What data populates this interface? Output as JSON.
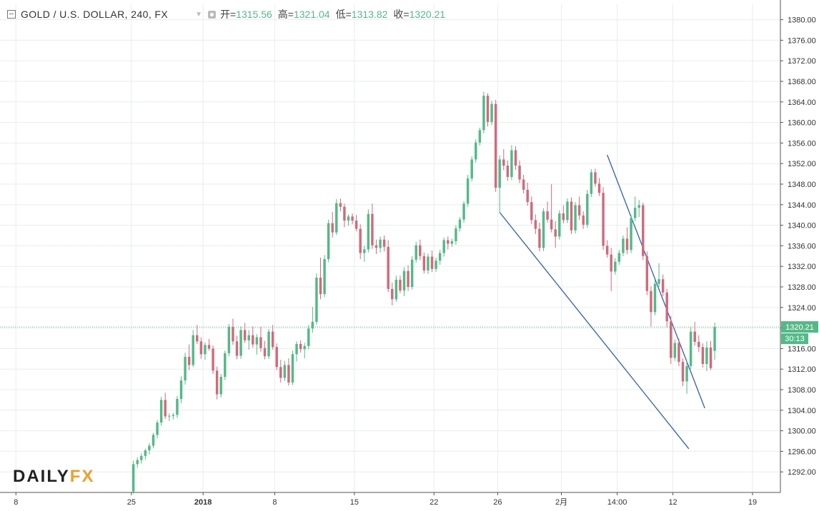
{
  "header": {
    "title": "GOLD / U.S. DOLLAR, 240, FX",
    "open_label": "开=",
    "open_value": "1315.56",
    "high_label": "高=",
    "high_value": "1321.04",
    "low_label": "低=",
    "low_value": "1313.82",
    "close_label": "收=",
    "close_value": "1320.21"
  },
  "logo": {
    "daily": "DAILY",
    "fx": "FX"
  },
  "colors": {
    "up": "#53b987",
    "down": "#d06a7d",
    "trend": "#2f5fae",
    "grid": "#e8ecee",
    "price_tag": "#53b987"
  },
  "chart_data": {
    "type": "candlestick",
    "title": "GOLD / U.S. DOLLAR, 240, FX",
    "timeframe": "240",
    "ylim": [
      1288,
      1383
    ],
    "y_ticks": [
      "1292.00",
      "1296.00",
      "1300.00",
      "1304.00",
      "1308.00",
      "1312.00",
      "1316.00",
      "1320.00",
      "1324.00",
      "1328.00",
      "1332.00",
      "1336.00",
      "1340.00",
      "1344.00",
      "1348.00",
      "1352.00",
      "1356.00",
      "1360.00",
      "1364.00",
      "1368.00",
      "1372.00",
      "1376.00",
      "1380.00"
    ],
    "x_ticks": [
      {
        "label": "8",
        "bar": -29,
        "bold": false
      },
      {
        "label": "25",
        "bar": 0,
        "bold": false
      },
      {
        "label": "2018",
        "bar": 18,
        "bold": true
      },
      {
        "label": "8",
        "bar": 36,
        "bold": false
      },
      {
        "label": "15",
        "bar": 56,
        "bold": false
      },
      {
        "label": "22",
        "bar": 76,
        "bold": false
      },
      {
        "label": "26",
        "bar": 92,
        "bold": false
      },
      {
        "label": "2月",
        "bar": 108,
        "bold": false
      },
      {
        "label": "14:00",
        "bar": 122,
        "bold": false
      },
      {
        "label": "12",
        "bar": 136,
        "bold": false
      },
      {
        "label": "19",
        "bar": 156,
        "bold": false
      }
    ],
    "x_range_bars": [
      -33,
      163
    ],
    "current_price": "1320.21",
    "countdown": "30:13",
    "candles": [
      [
        1288.2,
        1294.2,
        1287.8,
        1293.5
      ],
      [
        1293.5,
        1294.8,
        1292.8,
        1294.3
      ],
      [
        1294.3,
        1295.6,
        1293.6,
        1295.1
      ],
      [
        1295.1,
        1296.5,
        1294.4,
        1296.2
      ],
      [
        1296.2,
        1297.6,
        1295.4,
        1297.1
      ],
      [
        1297.1,
        1299.6,
        1296.6,
        1299.2
      ],
      [
        1299.2,
        1302.1,
        1298.5,
        1301.6
      ],
      [
        1301.6,
        1306.6,
        1301.0,
        1306.0
      ],
      [
        1306.0,
        1307.4,
        1302.3,
        1302.8
      ],
      [
        1302.8,
        1303.4,
        1301.9,
        1302.9
      ],
      [
        1302.9,
        1303.5,
        1302.2,
        1303.1
      ],
      [
        1303.1,
        1306.8,
        1302.5,
        1306.2
      ],
      [
        1306.2,
        1310.6,
        1305.4,
        1309.8
      ],
      [
        1309.8,
        1315.2,
        1309.0,
        1314.4
      ],
      [
        1314.4,
        1316.8,
        1311.8,
        1312.8
      ],
      [
        1312.8,
        1319.6,
        1312.4,
        1318.6
      ],
      [
        1318.6,
        1320.6,
        1316.9,
        1317.4
      ],
      [
        1317.4,
        1318.2,
        1314.0,
        1314.9
      ],
      [
        1314.9,
        1317.2,
        1313.8,
        1316.7
      ],
      [
        1316.7,
        1317.9,
        1315.6,
        1316.0
      ],
      [
        1316.0,
        1316.6,
        1311.1,
        1311.7
      ],
      [
        1311.7,
        1312.5,
        1306.1,
        1307.1
      ],
      [
        1307.1,
        1311.1,
        1306.5,
        1310.5
      ],
      [
        1310.5,
        1315.6,
        1309.9,
        1315.1
      ],
      [
        1315.1,
        1320.8,
        1314.5,
        1320.2
      ],
      [
        1320.2,
        1321.8,
        1316.7,
        1317.4
      ],
      [
        1317.4,
        1318.5,
        1313.9,
        1314.6
      ],
      [
        1314.6,
        1320.3,
        1314.0,
        1319.6
      ],
      [
        1319.6,
        1321.0,
        1317.1,
        1317.6
      ],
      [
        1317.6,
        1319.6,
        1315.8,
        1318.6
      ],
      [
        1318.6,
        1320.3,
        1316.2,
        1316.8
      ],
      [
        1316.8,
        1318.8,
        1314.8,
        1318.2
      ],
      [
        1318.2,
        1320.2,
        1315.4,
        1316.1
      ],
      [
        1316.1,
        1317.5,
        1313.9,
        1314.5
      ],
      [
        1314.5,
        1319.8,
        1314.0,
        1319.3
      ],
      [
        1319.3,
        1320.6,
        1315.8,
        1316.3
      ],
      [
        1316.3,
        1317.0,
        1311.8,
        1312.4
      ],
      [
        1312.4,
        1313.8,
        1309.4,
        1310.3
      ],
      [
        1310.3,
        1313.6,
        1309.7,
        1312.8
      ],
      [
        1312.8,
        1314.1,
        1308.8,
        1309.4
      ],
      [
        1309.4,
        1315.6,
        1308.9,
        1314.9
      ],
      [
        1314.9,
        1317.4,
        1313.5,
        1316.9
      ],
      [
        1316.9,
        1317.6,
        1315.2,
        1315.9
      ],
      [
        1315.9,
        1317.1,
        1314.1,
        1316.5
      ],
      [
        1316.5,
        1320.6,
        1315.9,
        1319.9
      ],
      [
        1319.9,
        1324.1,
        1319.1,
        1321.2
      ],
      [
        1321.2,
        1330.6,
        1320.7,
        1329.8
      ],
      [
        1329.8,
        1333.7,
        1325.6,
        1326.6
      ],
      [
        1326.6,
        1334.2,
        1326.0,
        1333.4
      ],
      [
        1333.4,
        1341.1,
        1332.8,
        1340.4
      ],
      [
        1340.4,
        1342.6,
        1337.6,
        1338.6
      ],
      [
        1338.6,
        1345.1,
        1338.1,
        1344.3
      ],
      [
        1344.3,
        1345.2,
        1342.7,
        1343.6
      ],
      [
        1343.6,
        1344.2,
        1339.6,
        1340.9
      ],
      [
        1340.9,
        1342.1,
        1339.9,
        1341.7
      ],
      [
        1341.7,
        1342.3,
        1340.2,
        1340.9
      ],
      [
        1340.9,
        1342.0,
        1338.8,
        1339.3
      ],
      [
        1339.3,
        1340.2,
        1333.4,
        1334.6
      ],
      [
        1334.6,
        1336.0,
        1332.9,
        1335.3
      ],
      [
        1335.3,
        1343.1,
        1334.7,
        1342.2
      ],
      [
        1342.2,
        1344.2,
        1335.4,
        1336.1
      ],
      [
        1336.1,
        1337.2,
        1334.4,
        1335.6
      ],
      [
        1335.6,
        1337.8,
        1334.7,
        1337.2
      ],
      [
        1337.2,
        1338.0,
        1334.9,
        1335.8
      ],
      [
        1335.8,
        1337.1,
        1327.0,
        1327.6
      ],
      [
        1327.6,
        1328.8,
        1324.4,
        1325.6
      ],
      [
        1325.6,
        1330.2,
        1325.1,
        1329.4
      ],
      [
        1329.4,
        1330.2,
        1326.8,
        1327.3
      ],
      [
        1327.3,
        1331.8,
        1326.2,
        1331.1
      ],
      [
        1331.1,
        1332.2,
        1327.2,
        1328.0
      ],
      [
        1328.0,
        1334.0,
        1327.5,
        1333.3
      ],
      [
        1333.3,
        1336.8,
        1332.7,
        1336.1
      ],
      [
        1336.1,
        1337.2,
        1333.2,
        1334.0
      ],
      [
        1334.0,
        1334.7,
        1330.6,
        1331.2
      ],
      [
        1331.2,
        1334.5,
        1330.5,
        1333.9
      ],
      [
        1333.9,
        1335.1,
        1330.9,
        1331.5
      ],
      [
        1331.5,
        1333.7,
        1330.9,
        1333.1
      ],
      [
        1333.1,
        1335.2,
        1332.3,
        1334.6
      ],
      [
        1334.6,
        1337.6,
        1333.9,
        1337.1
      ],
      [
        1337.1,
        1337.8,
        1335.3,
        1336.4
      ],
      [
        1336.4,
        1337.4,
        1335.8,
        1336.9
      ],
      [
        1336.9,
        1340.0,
        1336.2,
        1339.4
      ],
      [
        1339.4,
        1341.6,
        1338.8,
        1341.1
      ],
      [
        1341.1,
        1344.7,
        1340.5,
        1344.2
      ],
      [
        1344.2,
        1349.8,
        1343.6,
        1349.1
      ],
      [
        1349.1,
        1353.4,
        1348.5,
        1352.8
      ],
      [
        1352.8,
        1356.7,
        1352.2,
        1356.1
      ],
      [
        1356.1,
        1359.0,
        1355.5,
        1358.5
      ],
      [
        1358.5,
        1366.0,
        1357.9,
        1365.2
      ],
      [
        1365.2,
        1365.7,
        1359.2,
        1360.1
      ],
      [
        1360.1,
        1364.2,
        1359.5,
        1363.6
      ],
      [
        1363.6,
        1364.4,
        1346.5,
        1347.3
      ],
      [
        1347.3,
        1353.6,
        1342.3,
        1352.8
      ],
      [
        1352.8,
        1354.8,
        1350.7,
        1351.6
      ],
      [
        1351.6,
        1352.6,
        1348.6,
        1349.4
      ],
      [
        1349.4,
        1355.6,
        1348.8,
        1354.6
      ],
      [
        1354.6,
        1355.4,
        1350.8,
        1351.6
      ],
      [
        1351.6,
        1352.6,
        1348.2,
        1348.9
      ],
      [
        1348.9,
        1349.8,
        1346.2,
        1346.9
      ],
      [
        1346.9,
        1348.3,
        1343.8,
        1344.5
      ],
      [
        1344.5,
        1345.6,
        1340.2,
        1341.0
      ],
      [
        1341.0,
        1342.1,
        1338.3,
        1339.3
      ],
      [
        1339.3,
        1340.5,
        1334.9,
        1335.6
      ],
      [
        1335.6,
        1343.3,
        1335.0,
        1342.7
      ],
      [
        1342.7,
        1344.6,
        1340.5,
        1341.1
      ],
      [
        1341.1,
        1348.0,
        1338.6,
        1339.2
      ],
      [
        1339.2,
        1340.8,
        1335.6,
        1337.8
      ],
      [
        1337.8,
        1342.9,
        1337.2,
        1342.3
      ],
      [
        1342.3,
        1343.9,
        1340.4,
        1341.0
      ],
      [
        1341.0,
        1345.2,
        1340.4,
        1344.6
      ],
      [
        1344.6,
        1345.4,
        1338.3,
        1339.0
      ],
      [
        1339.0,
        1344.5,
        1338.4,
        1343.9
      ],
      [
        1343.9,
        1345.6,
        1341.0,
        1341.9
      ],
      [
        1341.9,
        1342.7,
        1339.3,
        1340.1
      ],
      [
        1340.1,
        1346.9,
        1339.5,
        1346.1
      ],
      [
        1346.1,
        1350.9,
        1345.5,
        1350.3
      ],
      [
        1350.3,
        1351.0,
        1347.5,
        1348.1
      ],
      [
        1348.1,
        1349.2,
        1345.7,
        1346.3
      ],
      [
        1346.3,
        1347.4,
        1335.2,
        1336.0
      ],
      [
        1336.0,
        1337.1,
        1333.7,
        1334.3
      ],
      [
        1334.3,
        1335.6,
        1327.2,
        1331.0
      ],
      [
        1331.0,
        1333.6,
        1330.4,
        1332.9
      ],
      [
        1332.9,
        1335.2,
        1332.3,
        1334.6
      ],
      [
        1334.6,
        1338.0,
        1334.0,
        1337.4
      ],
      [
        1337.4,
        1339.6,
        1334.4,
        1335.2
      ],
      [
        1335.2,
        1342.0,
        1334.6,
        1341.4
      ],
      [
        1341.4,
        1345.6,
        1340.8,
        1343.4
      ],
      [
        1343.4,
        1344.9,
        1341.6,
        1343.9
      ],
      [
        1343.9,
        1344.4,
        1333.2,
        1334.0
      ],
      [
        1334.0,
        1334.9,
        1326.4,
        1327.2
      ],
      [
        1327.2,
        1328.1,
        1320.3,
        1323.1
      ],
      [
        1323.1,
        1329.4,
        1322.5,
        1328.6
      ],
      [
        1328.6,
        1332.6,
        1328.0,
        1329.5
      ],
      [
        1329.5,
        1330.4,
        1326.2,
        1326.9
      ],
      [
        1326.9,
        1327.6,
        1320.1,
        1321.3
      ],
      [
        1321.3,
        1322.4,
        1313.0,
        1314.2
      ],
      [
        1314.2,
        1317.8,
        1313.6,
        1317.1
      ],
      [
        1317.1,
        1317.9,
        1312.6,
        1313.4
      ],
      [
        1313.4,
        1314.1,
        1308.7,
        1309.6
      ],
      [
        1309.6,
        1313.6,
        1307.2,
        1312.6
      ],
      [
        1312.6,
        1320.2,
        1312.0,
        1319.3
      ],
      [
        1319.3,
        1321.2,
        1316.6,
        1317.3
      ],
      [
        1317.3,
        1318.6,
        1315.3,
        1316.3
      ],
      [
        1316.3,
        1317.0,
        1312.3,
        1313.0
      ],
      [
        1313.0,
        1317.4,
        1311.6,
        1316.2
      ],
      [
        1316.2,
        1317.5,
        1311.8,
        1312.2
      ],
      [
        1315.56,
        1321.04,
        1313.82,
        1320.21
      ]
    ],
    "trendlines": [
      {
        "from": [
          92.5,
          1342.5
        ],
        "to": [
          140,
          1296.5
        ]
      },
      {
        "from": [
          119.5,
          1353.7
        ],
        "to": [
          144,
          1304.4
        ]
      }
    ]
  }
}
